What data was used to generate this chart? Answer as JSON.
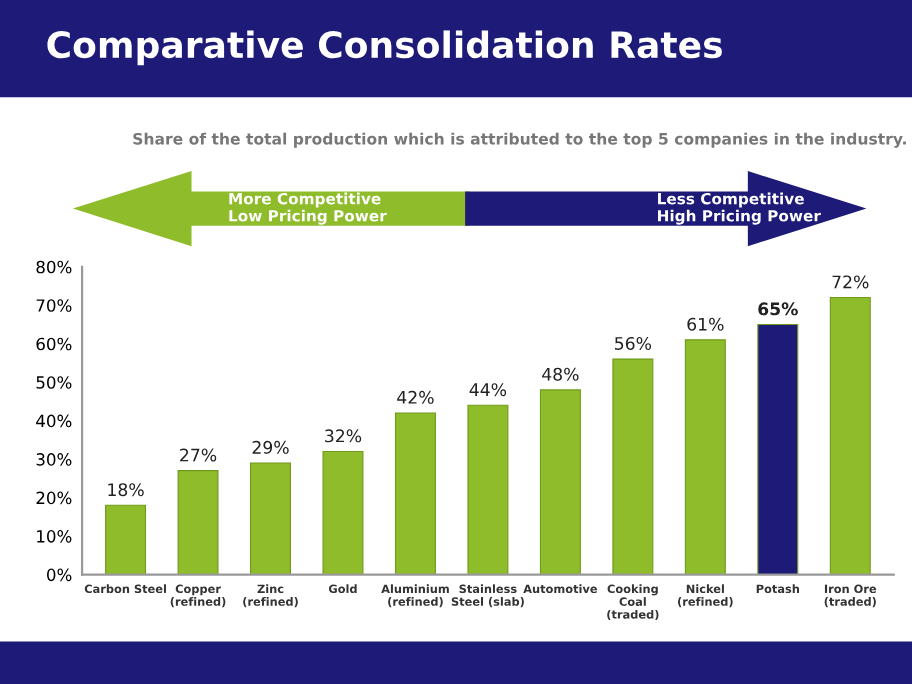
{
  "chart_data": {
    "type": "bar",
    "title": "Comparative Consolidation Rates",
    "subtitle": "Share of the total production which is attributed to the top 5 companies in the industry.",
    "annotations": [
      "More Competitive\nLow Pricing Power",
      "Less Competitive\nHigh Pricing Power"
    ],
    "categories": [
      "Carbon Steel",
      "Copper\n(refined)",
      "Zinc\n(refined)",
      "Gold",
      "Aluminium\n(refined)",
      "Stainless\nSteel (slab)",
      "Automotive",
      "Cooking\nCoal\n(traded)",
      "Nickel\n(refined)",
      "Potash",
      "Iron Ore\n(traded)"
    ],
    "values": [
      18,
      27,
      29,
      32,
      42,
      44,
      48,
      56,
      61,
      65,
      72
    ],
    "colors": [
      "#8fbc2b",
      "#8fbc2b",
      "#8fbc2b",
      "#8fbc2b",
      "#8fbc2b",
      "#8fbc2b",
      "#8fbc2b",
      "#8fbc2b",
      "#8fbc2b",
      "#1e1a78",
      "#8fbc2b"
    ],
    "value_labels": [
      "18%",
      "27%",
      "29%",
      "32%",
      "42%",
      "44%",
      "48%",
      "56%",
      "61%",
      "65%",
      "72%"
    ],
    "ylim": [
      0,
      80
    ],
    "yticks": [
      {
        "value": 0,
        "label": "0%"
      },
      {
        "value": 10,
        "label": "10%"
      },
      {
        "value": 20,
        "label": "20%"
      },
      {
        "value": 30,
        "label": "30%"
      },
      {
        "value": 40,
        "label": "40%"
      },
      {
        "value": 50,
        "label": "50%"
      },
      {
        "value": 60,
        "label": "60%"
      },
      {
        "value": 70,
        "label": "70%"
      },
      {
        "value": 80,
        "label": "80%"
      }
    ],
    "grid": false,
    "legend": false
  }
}
